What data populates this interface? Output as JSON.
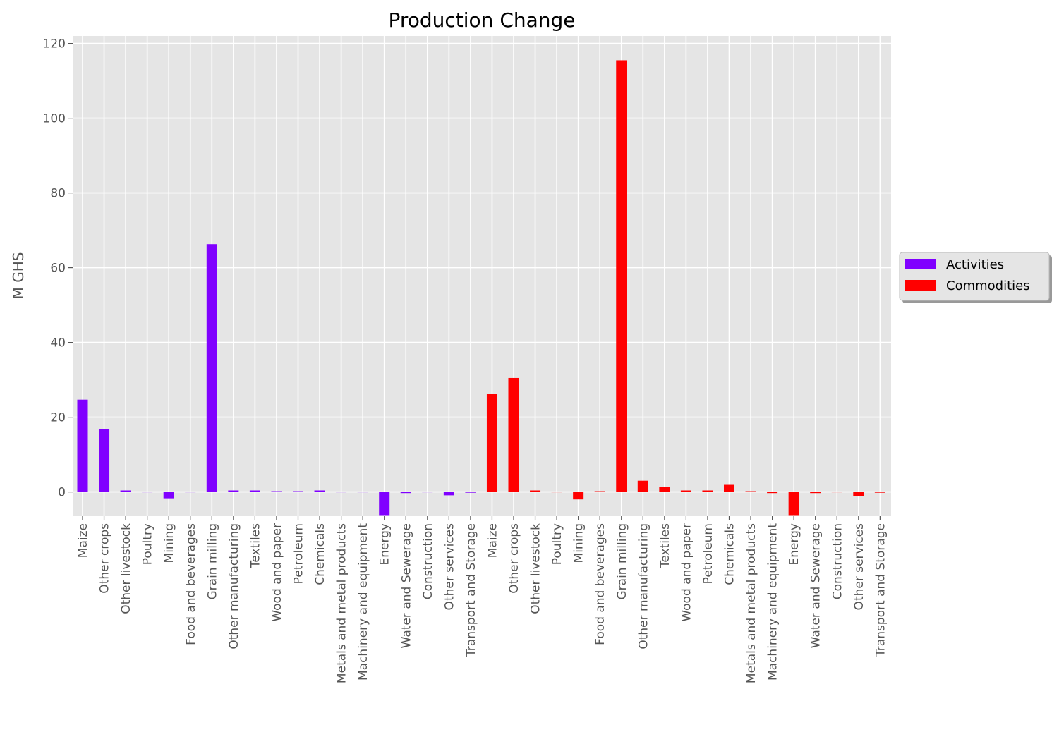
{
  "chart_data": {
    "type": "bar",
    "title": "Production Change",
    "ylabel": "M GHS",
    "xlabel": "",
    "ylim": [
      -6.3,
      122
    ],
    "yticks": [
      0,
      20,
      40,
      60,
      80,
      100,
      120
    ],
    "grid": true,
    "legend_placement": "right",
    "categories": [
      "Maize",
      "Other crops",
      "Other livestock",
      "Poultry",
      "Mining",
      "Food and beverages",
      "Grain milling",
      "Other manufacturing",
      "Textiles",
      "Wood and paper",
      "Petroleum",
      "Chemicals",
      "Metals and metal products",
      "Machinery and equipment",
      "Energy",
      "Water and Sewerage",
      "Construction",
      "Other services",
      "Transport and Storage",
      "Maize",
      "Other crops",
      "Other livestock",
      "Poultry",
      "Mining",
      "Food and beverages",
      "Grain milling",
      "Other manufacturing",
      "Textiles",
      "Wood and paper",
      "Petroleum",
      "Chemicals",
      "Metals and metal products",
      "Machinery and equipment",
      "Energy",
      "Water and Sewerage",
      "Construction",
      "Other services",
      "Transport and Storage"
    ],
    "series": [
      {
        "name": "Activities",
        "color": "#8000ff",
        "values": [
          24.7,
          16.8,
          0.4,
          0.0,
          -1.7,
          0.0,
          66.3,
          0.4,
          0.4,
          0.2,
          0.2,
          0.4,
          0.0,
          0.0,
          -6.2,
          -0.3,
          0.0,
          -0.9,
          -0.2,
          null,
          null,
          null,
          null,
          null,
          null,
          null,
          null,
          null,
          null,
          null,
          null,
          null,
          null,
          null,
          null,
          null,
          null,
          null
        ]
      },
      {
        "name": "Commodities",
        "color": "#ff0000",
        "values": [
          null,
          null,
          null,
          null,
          null,
          null,
          null,
          null,
          null,
          null,
          null,
          null,
          null,
          null,
          null,
          null,
          null,
          null,
          null,
          26.2,
          30.5,
          0.4,
          0.0,
          -2.0,
          0.2,
          115.5,
          3.0,
          1.3,
          0.4,
          0.4,
          1.9,
          0.2,
          -0.3,
          -6.2,
          -0.3,
          0.0,
          -1.1,
          -0.2
        ]
      }
    ]
  }
}
